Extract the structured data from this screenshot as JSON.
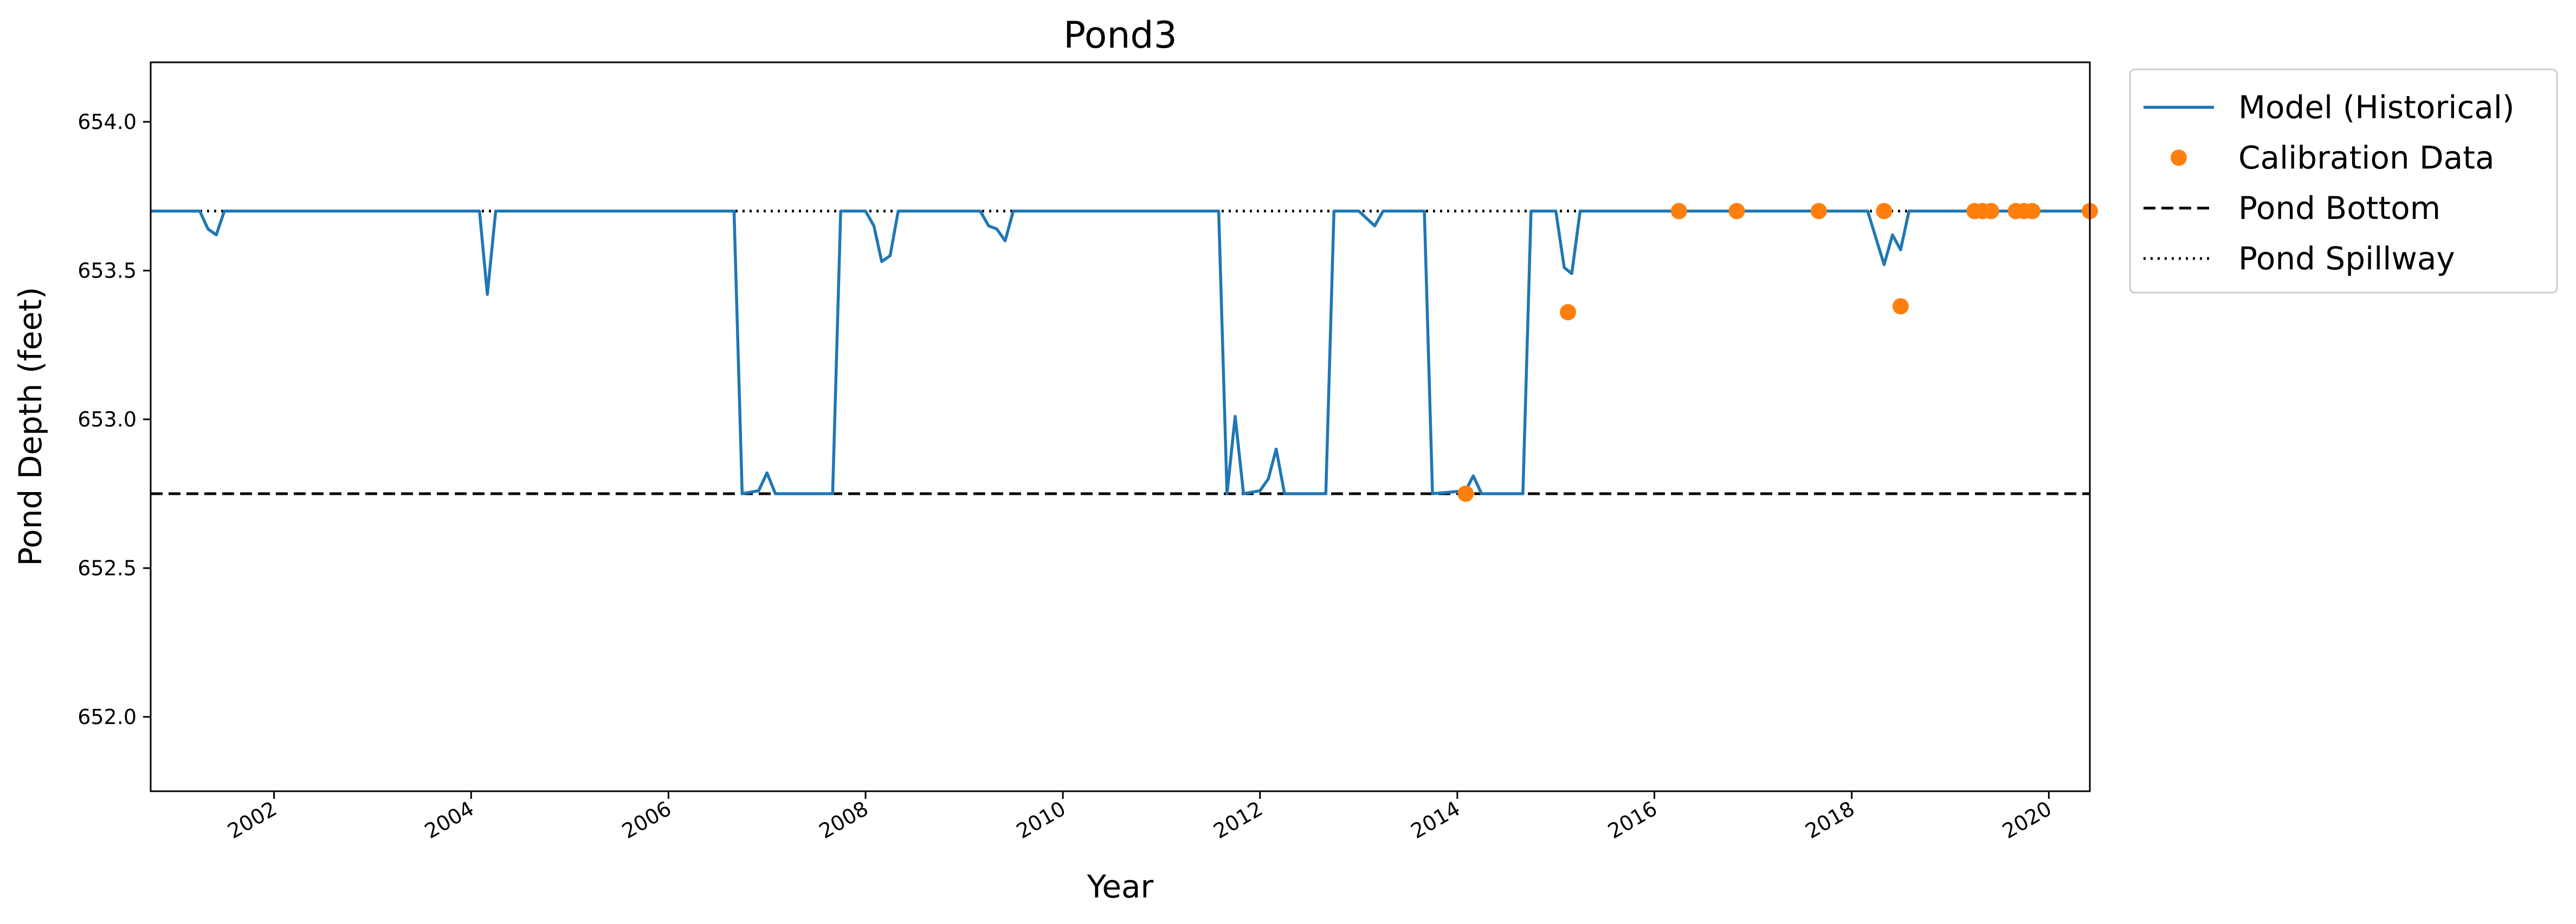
{
  "chart_data": {
    "type": "line",
    "title": "Pond3",
    "xlabel": "Year",
    "ylabel": "Pond Depth (feet)",
    "xlim": [
      "2000-10-01",
      "2020-06-01"
    ],
    "ylim": [
      651.75,
      654.2
    ],
    "x_ticks": [
      "2002",
      "2004",
      "2006",
      "2008",
      "2010",
      "2012",
      "2014",
      "2016",
      "2018",
      "2020"
    ],
    "y_ticks": [
      "652.0",
      "652.5",
      "653.0",
      "653.5",
      "654.0"
    ],
    "legend_position": "outside-top-right",
    "grid": false,
    "colors": {
      "model": "#1f77b4",
      "calibration": "#ff7f0e",
      "reference": "#000000"
    },
    "series": [
      {
        "name": "Model (Historical)",
        "kind": "line",
        "points": [
          [
            "2000-10-01",
            653.7
          ],
          [
            "2001-04-01",
            653.7
          ],
          [
            "2001-05-01",
            653.64
          ],
          [
            "2001-06-01",
            653.62
          ],
          [
            "2001-07-01",
            653.7
          ],
          [
            "2004-02-01",
            653.7
          ],
          [
            "2004-03-01",
            653.42
          ],
          [
            "2004-04-01",
            653.7
          ],
          [
            "2006-09-01",
            653.7
          ],
          [
            "2006-10-01",
            652.75
          ],
          [
            "2006-12-01",
            652.76
          ],
          [
            "2007-01-01",
            652.82
          ],
          [
            "2007-02-01",
            652.75
          ],
          [
            "2007-09-01",
            652.75
          ],
          [
            "2007-10-01",
            653.7
          ],
          [
            "2008-01-01",
            653.7
          ],
          [
            "2008-02-01",
            653.65
          ],
          [
            "2008-03-01",
            653.53
          ],
          [
            "2008-04-01",
            653.55
          ],
          [
            "2008-05-01",
            653.7
          ],
          [
            "2009-03-01",
            653.7
          ],
          [
            "2009-04-01",
            653.65
          ],
          [
            "2009-05-01",
            653.64
          ],
          [
            "2009-06-01",
            653.6
          ],
          [
            "2009-07-01",
            653.7
          ],
          [
            "2011-08-01",
            653.7
          ],
          [
            "2011-09-01",
            652.75
          ],
          [
            "2011-10-01",
            653.01
          ],
          [
            "2011-11-01",
            652.75
          ],
          [
            "2012-01-01",
            652.76
          ],
          [
            "2012-02-01",
            652.8
          ],
          [
            "2012-03-01",
            652.9
          ],
          [
            "2012-04-01",
            652.75
          ],
          [
            "2012-09-01",
            652.75
          ],
          [
            "2012-10-01",
            653.7
          ],
          [
            "2013-01-01",
            653.7
          ],
          [
            "2013-03-01",
            653.65
          ],
          [
            "2013-04-01",
            653.7
          ],
          [
            "2013-09-01",
            653.7
          ],
          [
            "2013-10-01",
            652.75
          ],
          [
            "2014-02-01",
            652.76
          ],
          [
            "2014-03-01",
            652.81
          ],
          [
            "2014-04-01",
            652.75
          ],
          [
            "2014-09-01",
            652.75
          ],
          [
            "2014-10-01",
            653.7
          ],
          [
            "2015-01-01",
            653.7
          ],
          [
            "2015-02-01",
            653.51
          ],
          [
            "2015-03-01",
            653.49
          ],
          [
            "2015-04-01",
            653.7
          ],
          [
            "2018-03-01",
            653.7
          ],
          [
            "2018-05-01",
            653.52
          ],
          [
            "2018-06-01",
            653.62
          ],
          [
            "2018-07-01",
            653.57
          ],
          [
            "2018-08-01",
            653.7
          ],
          [
            "2020-06-01",
            653.7
          ]
        ]
      },
      {
        "name": "Calibration Data",
        "kind": "scatter",
        "points": [
          [
            "2014-02-01",
            652.75
          ],
          [
            "2015-02-15",
            653.36
          ],
          [
            "2016-04-01",
            653.7
          ],
          [
            "2016-11-01",
            653.7
          ],
          [
            "2017-09-01",
            653.7
          ],
          [
            "2018-05-01",
            653.7
          ],
          [
            "2018-07-01",
            653.38
          ],
          [
            "2019-04-01",
            653.7
          ],
          [
            "2019-05-01",
            653.7
          ],
          [
            "2019-06-01",
            653.7
          ],
          [
            "2019-09-01",
            653.7
          ],
          [
            "2019-10-01",
            653.7
          ],
          [
            "2019-11-01",
            653.7
          ],
          [
            "2020-06-01",
            653.7
          ]
        ]
      },
      {
        "name": "Pond Bottom",
        "kind": "hline",
        "style": "dashed",
        "y": 652.75
      },
      {
        "name": "Pond Spillway",
        "kind": "hline",
        "style": "dotted",
        "y": 653.7
      }
    ]
  }
}
